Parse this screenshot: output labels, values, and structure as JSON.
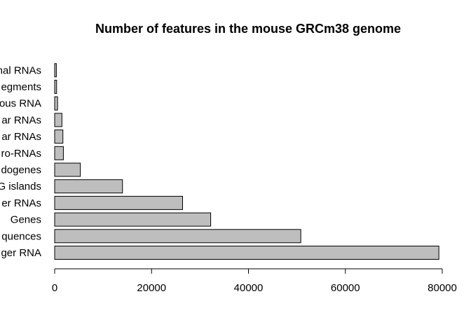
{
  "chart_data": {
    "type": "bar",
    "orientation": "horizontal",
    "title": "Number of features in the mouse GRCm38 genome",
    "xlabel": "",
    "ylabel": "",
    "categories": [
      "ger RNA",
      "quences",
      "Genes",
      "er RNAs",
      "G islands",
      "dogenes",
      "ro-RNAs",
      "ar RNAs",
      "ar RNAs",
      "ous RNA",
      "egments",
      "nal RNAs"
    ],
    "values": [
      79300,
      50800,
      32200,
      26400,
      14000,
      5300,
      1800,
      1700,
      1500,
      600,
      400,
      350
    ],
    "xlim": [
      0,
      80000
    ],
    "xticks": [
      "0",
      "20000",
      "40000",
      "60000",
      "80000"
    ],
    "grid": false,
    "colors": {
      "bar_fill": "#bebebe",
      "bar_stroke": "#000000"
    }
  }
}
